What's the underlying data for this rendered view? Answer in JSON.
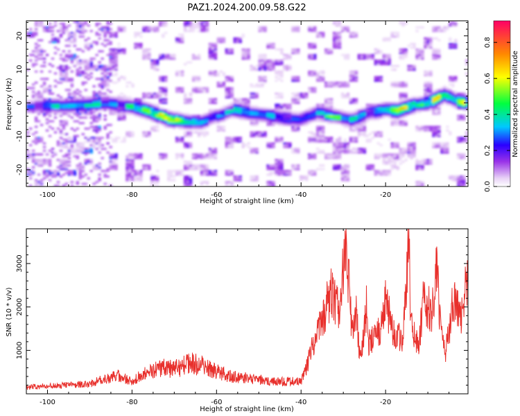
{
  "title": "PAZ1.2024.200.09.58.G22",
  "colors": {
    "snr_line": "#e8302c",
    "axes": "#000000",
    "colormap": [
      "#ffffff",
      "#b87be6",
      "#7a00e6",
      "#1000ff",
      "#00e0ff",
      "#00ff40",
      "#ffff00",
      "#ff8000",
      "#ff0066"
    ]
  },
  "chart_data": [
    {
      "type": "heatmap",
      "title": "PAZ1.2024.200.09.58.G22",
      "xlabel": "Height of straight line (km)",
      "ylabel": "Frequency (Hz)",
      "xlim": [
        -105,
        -0.5
      ],
      "ylim": [
        -25,
        24.5
      ],
      "x_ticks": [
        -100,
        -80,
        -60,
        -40,
        -20
      ],
      "y_ticks": [
        -20,
        -10,
        0,
        10,
        20
      ],
      "colorbar": {
        "label": "Normalized spectral amplitude",
        "range": [
          0,
          0.92
        ],
        "ticks": [
          0.0,
          0.2,
          0.4,
          0.6,
          0.8
        ]
      },
      "ridge": [
        {
          "height": -103,
          "freq": -1.0,
          "amp": 0.22
        },
        {
          "height": -100,
          "freq": -0.8,
          "amp": 0.25
        },
        {
          "height": -96,
          "freq": -1.0,
          "amp": 0.35
        },
        {
          "height": -91,
          "freq": -0.5,
          "amp": 0.3
        },
        {
          "height": -86,
          "freq": 0.0,
          "amp": 0.32
        },
        {
          "height": -80,
          "freq": -1.0,
          "amp": 0.38
        },
        {
          "height": -76,
          "freq": -2.5,
          "amp": 0.45
        },
        {
          "height": -72,
          "freq": -4.5,
          "amp": 0.68
        },
        {
          "height": -68,
          "freq": -5.5,
          "amp": 0.42
        },
        {
          "height": -64,
          "freq": -6.0,
          "amp": 0.3
        },
        {
          "height": -60,
          "freq": -4.0,
          "amp": 0.25
        },
        {
          "height": -56,
          "freq": -2.0,
          "amp": 0.3
        },
        {
          "height": -52,
          "freq": -3.0,
          "amp": 0.33
        },
        {
          "height": -48,
          "freq": -3.5,
          "amp": 0.3
        },
        {
          "height": -44,
          "freq": -4.5,
          "amp": 0.32
        },
        {
          "height": -40,
          "freq": -5.0,
          "amp": 0.3
        },
        {
          "height": -36,
          "freq": -3.0,
          "amp": 0.32
        },
        {
          "height": -32,
          "freq": -4.0,
          "amp": 0.4
        },
        {
          "height": -28,
          "freq": -5.0,
          "amp": 0.35
        },
        {
          "height": -24,
          "freq": -3.0,
          "amp": 0.3
        },
        {
          "height": -20,
          "freq": -2.0,
          "amp": 0.4
        },
        {
          "height": -17,
          "freq": -2.3,
          "amp": 0.55
        },
        {
          "height": -13,
          "freq": -0.5,
          "amp": 0.4
        },
        {
          "height": -10,
          "freq": 0.0,
          "amp": 0.55
        },
        {
          "height": -6,
          "freq": 2.5,
          "amp": 0.45
        },
        {
          "height": -3,
          "freq": 0.5,
          "amp": 0.4
        },
        {
          "height": -0.5,
          "freq": 0.0,
          "amp": 0.55
        }
      ]
    },
    {
      "type": "line",
      "xlabel": "Height of straight line (km)",
      "ylabel": "SNR (10 * v/v)",
      "xlim": [
        -105,
        -0.5
      ],
      "ylim": [
        0,
        3800
      ],
      "x_ticks": [
        -100,
        -80,
        -60,
        -40,
        -20
      ],
      "y_ticks": [
        1000,
        2000,
        3000
      ],
      "series": [
        {
          "x": [
            -105,
            -100,
            -95,
            -90,
            -86,
            -84,
            -80,
            -76,
            -73,
            -70,
            -66,
            -64,
            -60,
            -56,
            -52,
            -48,
            -44,
            -40,
            -37,
            -35,
            -33,
            -31,
            -30,
            -29.5,
            -29,
            -28,
            -27,
            -26,
            -24.5,
            -24,
            -22,
            -20,
            -19,
            -18,
            -16,
            -15,
            -14.5,
            -14,
            -12,
            -11,
            -10,
            -9,
            -8.5,
            -8,
            -7,
            -6,
            -5,
            -4,
            -3,
            -2,
            -1,
            -0.5
          ],
          "y": [
            150,
            180,
            200,
            230,
            350,
            450,
            300,
            500,
            600,
            580,
            700,
            650,
            500,
            400,
            350,
            300,
            280,
            300,
            1200,
            1700,
            2300,
            1900,
            2800,
            3500,
            3000,
            1500,
            1900,
            800,
            2000,
            1200,
            1300,
            2100,
            1800,
            1400,
            1200,
            2600,
            3800,
            1500,
            1200,
            2200,
            2000,
            1800,
            2400,
            3100,
            1600,
            900,
            1400,
            2200,
            1900,
            1700,
            2500,
            2400
          ]
        }
      ]
    }
  ]
}
